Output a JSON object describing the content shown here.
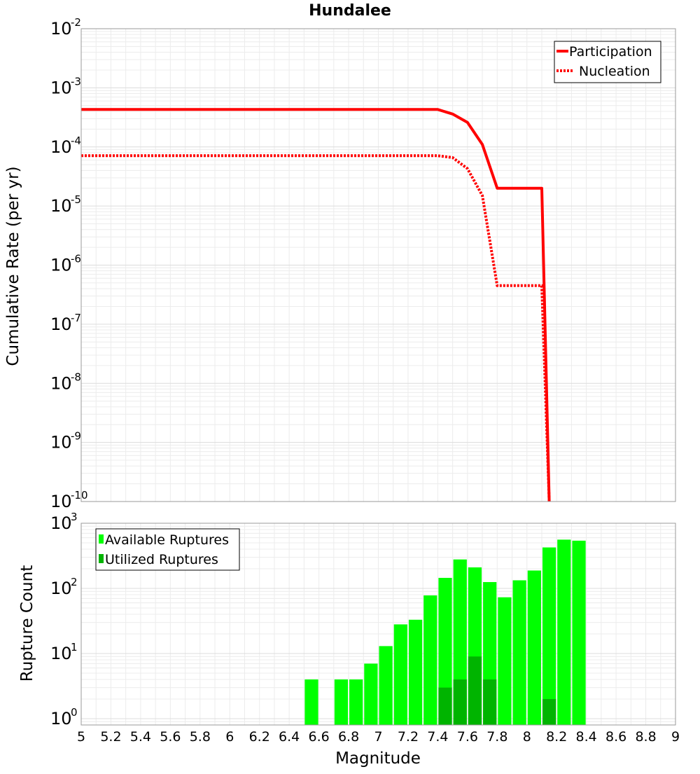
{
  "chart_data": [
    {
      "type": "line",
      "title": "Hundalee",
      "ylabel": "Cumulative Rate (per yr)",
      "yscale": "log",
      "xlim": [
        5,
        9
      ],
      "ylim": [
        1e-10,
        0.01
      ],
      "y_tick_exponents": [
        -2,
        -3,
        -4,
        -5,
        -6,
        -7,
        -8,
        -9,
        -10
      ],
      "legend_position": "top-right",
      "series": [
        {
          "name": "Participation",
          "style": "solid",
          "color": "#ff0000",
          "x": [
            5.0,
            7.4,
            7.5,
            7.6,
            7.7,
            7.8,
            7.9,
            8.0,
            8.1,
            8.15
          ],
          "y": [
            0.00043,
            0.00043,
            0.00036,
            0.00026,
            0.00011,
            2e-05,
            2e-05,
            2e-05,
            2e-05,
            1e-10
          ]
        },
        {
          "name": "Nucleation",
          "style": "dotted",
          "color": "#ff0000",
          "x": [
            5.0,
            7.4,
            7.5,
            7.6,
            7.7,
            7.8,
            7.9,
            8.0,
            8.1,
            8.15
          ],
          "y": [
            7.1e-05,
            7.1e-05,
            6.6e-05,
            4.3e-05,
            1.5e-05,
            4.5e-07,
            4.5e-07,
            4.5e-07,
            4.5e-07,
            1e-10
          ]
        }
      ]
    },
    {
      "type": "bar",
      "ylabel": "Rupture Count",
      "xlabel": "Magnitude",
      "yscale": "log",
      "xlim": [
        5,
        9
      ],
      "ylim": [
        0.8,
        1000
      ],
      "x_ticks": [
        "5",
        "5.2",
        "5.4",
        "5.6",
        "5.8",
        "6",
        "6.2",
        "6.4",
        "6.6",
        "6.8",
        "7",
        "7.2",
        "7.4",
        "7.6",
        "7.8",
        "8",
        "8.2",
        "8.4",
        "8.6",
        "8.8",
        "9"
      ],
      "y_tick_exponents": [
        3,
        2,
        1,
        0
      ],
      "legend_position": "top-left",
      "bin_width": 0.1,
      "series": [
        {
          "name": "Available Ruptures",
          "color": "#00ff00",
          "x": [
            6.55,
            6.75,
            6.85,
            6.95,
            7.05,
            7.15,
            7.25,
            7.35,
            7.45,
            7.55,
            7.65,
            7.75,
            7.85,
            7.95,
            8.05,
            8.15,
            8.25,
            8.35
          ],
          "values": [
            4,
            4,
            4,
            7,
            13,
            28,
            33,
            78,
            145,
            278,
            210,
            125,
            73,
            133,
            188,
            425,
            560,
            540
          ]
        },
        {
          "name": "Utilized Ruptures",
          "color": "#00b400",
          "x": [
            7.45,
            7.55,
            7.65,
            7.75,
            8.15
          ],
          "values": [
            3,
            4,
            9,
            4,
            2
          ]
        }
      ]
    }
  ]
}
